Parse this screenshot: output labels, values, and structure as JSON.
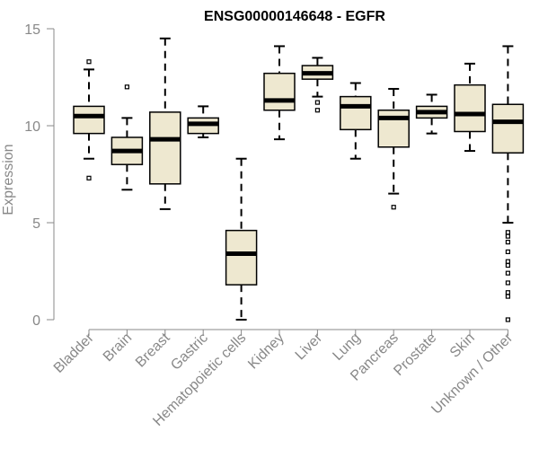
{
  "chart_data": {
    "type": "box",
    "title": "ENSG00000146648 - EGFR",
    "xlabel": "",
    "ylabel": "Expression",
    "ylim": [
      0,
      15
    ],
    "yticks": [
      0,
      5,
      10,
      15
    ],
    "grid": false,
    "colors": {
      "box_fill": "#EEE8D0",
      "stroke": "#000000",
      "axis": "#888888",
      "title": "#000000"
    },
    "categories": [
      "Bladder",
      "Brain",
      "Breast",
      "Gastric",
      "Hematopoietic cells",
      "Kidney",
      "Liver",
      "Lung",
      "Pancreas",
      "Prostate",
      "Skin",
      "Unknown / Other"
    ],
    "boxes": [
      {
        "category": "Bladder",
        "whisker_low": 8.3,
        "q1": 9.6,
        "median": 10.5,
        "q3": 11.0,
        "whisker_high": 12.9,
        "outliers": [
          13.3,
          7.3
        ]
      },
      {
        "category": "Brain",
        "whisker_low": 6.7,
        "q1": 8.0,
        "median": 8.7,
        "q3": 9.4,
        "whisker_high": 10.4,
        "outliers": [
          12.0
        ]
      },
      {
        "category": "Breast",
        "whisker_low": 5.7,
        "q1": 7.0,
        "median": 9.3,
        "q3": 10.7,
        "whisker_high": 14.5,
        "outliers": []
      },
      {
        "category": "Gastric",
        "whisker_low": 9.4,
        "q1": 9.6,
        "median": 10.1,
        "q3": 10.4,
        "whisker_high": 11.0,
        "outliers": []
      },
      {
        "category": "Hematopoietic cells",
        "whisker_low": 0.0,
        "q1": 1.8,
        "median": 3.4,
        "q3": 4.6,
        "whisker_high": 8.3,
        "outliers": []
      },
      {
        "category": "Kidney",
        "whisker_low": 9.3,
        "q1": 10.8,
        "median": 11.3,
        "q3": 12.7,
        "whisker_high": 14.1,
        "outliers": []
      },
      {
        "category": "Liver",
        "whisker_low": 11.5,
        "q1": 12.4,
        "median": 12.7,
        "q3": 13.1,
        "whisker_high": 13.5,
        "outliers": [
          11.2,
          10.8
        ]
      },
      {
        "category": "Lung",
        "whisker_low": 8.3,
        "q1": 9.8,
        "median": 11.0,
        "q3": 11.5,
        "whisker_high": 12.2,
        "outliers": []
      },
      {
        "category": "Pancreas",
        "whisker_low": 6.5,
        "q1": 8.9,
        "median": 10.4,
        "q3": 10.8,
        "whisker_high": 11.9,
        "outliers": [
          5.8
        ]
      },
      {
        "category": "Prostate",
        "whisker_low": 9.6,
        "q1": 10.4,
        "median": 10.7,
        "q3": 11.0,
        "whisker_high": 11.6,
        "outliers": []
      },
      {
        "category": "Skin",
        "whisker_low": 8.7,
        "q1": 9.7,
        "median": 10.6,
        "q3": 12.1,
        "whisker_high": 13.2,
        "outliers": []
      },
      {
        "category": "Unknown / Other",
        "whisker_low": 5.0,
        "q1": 8.6,
        "median": 10.2,
        "q3": 11.1,
        "whisker_high": 14.1,
        "outliers": [
          4.5,
          4.3,
          4.0,
          3.5,
          3.0,
          2.8,
          2.4,
          1.9,
          1.4,
          1.2,
          0.0
        ]
      }
    ]
  }
}
